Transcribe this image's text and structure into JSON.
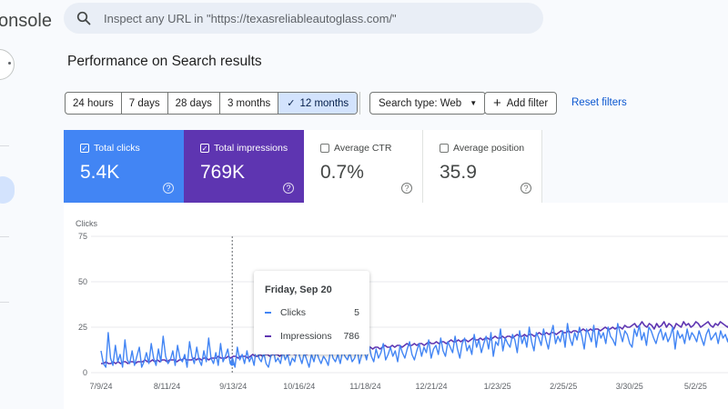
{
  "app": {
    "title": "onsole"
  },
  "search": {
    "placeholder": "Inspect any URL in \"https://texasreliableautoglass.com/\""
  },
  "page": {
    "title": "Performance on Search results"
  },
  "date_ranges": [
    {
      "label": "24 hours",
      "selected": false
    },
    {
      "label": "7 days",
      "selected": false
    },
    {
      "label": "28 days",
      "selected": false
    },
    {
      "label": "3 months",
      "selected": false
    },
    {
      "label": "12 months",
      "selected": true
    }
  ],
  "filters": {
    "search_type": "Search type: Web",
    "add_filter": "Add filter",
    "reset": "Reset filters"
  },
  "metrics": [
    {
      "label": "Total clicks",
      "value": "5.4K",
      "checked": true,
      "color": "#4285f4"
    },
    {
      "label": "Total impressions",
      "value": "769K",
      "checked": true,
      "color": "#5e35b1"
    },
    {
      "label": "Average CTR",
      "value": "0.7%",
      "checked": false
    },
    {
      "label": "Average position",
      "value": "35.9",
      "checked": false
    }
  ],
  "tooltip": {
    "date": "Friday, Sep 20",
    "rows": [
      {
        "name": "Clicks",
        "value": "5",
        "color": "#4285f4"
      },
      {
        "name": "Impressions",
        "value": "786",
        "color": "#5e35b1"
      }
    ]
  },
  "chart_data": {
    "type": "line",
    "ylabel": "Clicks",
    "y_ticks": [
      "75",
      "50",
      "25",
      "0"
    ],
    "ylim": [
      0,
      75
    ],
    "x_ticks": [
      "7/9/24",
      "8/11/24",
      "9/13/24",
      "10/16/24",
      "11/18/24",
      "12/21/24",
      "1/23/25",
      "2/25/25",
      "3/30/25",
      "5/2/25"
    ],
    "grid": true,
    "hover_date": "9/20/24",
    "series": [
      {
        "name": "Clicks",
        "color": "#4285f4",
        "values": [
          12,
          5,
          3,
          22,
          8,
          4,
          15,
          6,
          10,
          3,
          18,
          7,
          5,
          12,
          4,
          9,
          14,
          3,
          6,
          11,
          5,
          16,
          8,
          4,
          13,
          6,
          20,
          9,
          5,
          7,
          12,
          4,
          15,
          8,
          6,
          10,
          3,
          17,
          9,
          5,
          14,
          7,
          4,
          12,
          6,
          19,
          8,
          5,
          11,
          4,
          16,
          6,
          9,
          13,
          5,
          8,
          3,
          14,
          7,
          10,
          5,
          12,
          6,
          9,
          4,
          15,
          8,
          6,
          11,
          5,
          3,
          9,
          13,
          6,
          8,
          5,
          12,
          7,
          10,
          4,
          8,
          6,
          14,
          9,
          5,
          11,
          7,
          3,
          10,
          6,
          12,
          8,
          5,
          9,
          7,
          4,
          13,
          8,
          6,
          10,
          5,
          12,
          9,
          7,
          11,
          6,
          8,
          14,
          5,
          10,
          12,
          7,
          15,
          9,
          6,
          13,
          8,
          11,
          16,
          7,
          10,
          14,
          9,
          12,
          6,
          15,
          11,
          8,
          13,
          17,
          10,
          7,
          12,
          16,
          9,
          14,
          11,
          18,
          8,
          13,
          15,
          10,
          19,
          12,
          9,
          17,
          14,
          11,
          20,
          13,
          8,
          16,
          19,
          12,
          15,
          10,
          21,
          14,
          18,
          11,
          16,
          20,
          13,
          22,
          9,
          17,
          15,
          24,
          12,
          19,
          16,
          14,
          21,
          18,
          11,
          23,
          16,
          20,
          14,
          25,
          17,
          12,
          22,
          19,
          15,
          24,
          18,
          13,
          21,
          26,
          16,
          20,
          17,
          23,
          14,
          27,
          19,
          15,
          22,
          18,
          25,
          20,
          13,
          24,
          21,
          17,
          26,
          14,
          23,
          19,
          22,
          16,
          25,
          20,
          18,
          15,
          27,
          22,
          17,
          23,
          21,
          16,
          14,
          24,
          20,
          26,
          18,
          22,
          15,
          25,
          23,
          19,
          16,
          21,
          24,
          18,
          22,
          17,
          20,
          25,
          13,
          23,
          19,
          21,
          16,
          24,
          18,
          22,
          20,
          17,
          23,
          19,
          15,
          21,
          24,
          18,
          20,
          22,
          16,
          23,
          19,
          21,
          17,
          24,
          20
        ]
      },
      {
        "name": "Impressions",
        "color": "#5e35b1",
        "values": [
          5,
          5,
          6,
          5,
          5,
          6,
          5,
          6,
          5,
          6,
          6,
          5,
          6,
          6,
          5,
          6,
          6,
          6,
          7,
          6,
          6,
          7,
          6,
          7,
          6,
          7,
          7,
          6,
          7,
          7,
          7,
          6,
          7,
          7,
          8,
          7,
          7,
          7,
          8,
          7,
          8,
          7,
          8,
          8,
          7,
          8,
          8,
          8,
          9,
          8,
          8,
          8,
          9,
          8,
          9,
          9,
          8,
          9,
          9,
          9,
          8,
          9,
          10,
          9,
          9,
          10,
          9,
          10,
          10,
          9,
          10,
          10,
          10,
          9,
          10,
          11,
          10,
          10,
          11,
          10,
          11,
          10,
          11,
          11,
          10,
          11,
          11,
          12,
          11,
          11,
          12,
          11,
          12,
          12,
          11,
          12,
          12,
          13,
          12,
          12,
          13,
          12,
          13,
          13,
          12,
          13,
          13,
          14,
          13,
          13,
          14,
          13,
          14,
          14,
          13,
          14,
          15,
          14,
          14,
          15,
          14,
          15,
          15,
          14,
          15,
          16,
          15,
          15,
          16,
          15,
          16,
          16,
          15,
          16,
          17,
          16,
          16,
          17,
          16,
          17,
          17,
          16,
          17,
          18,
          17,
          17,
          18,
          17,
          18,
          18,
          17,
          18,
          19,
          18,
          18,
          19,
          18,
          19,
          19,
          18,
          19,
          20,
          19,
          19,
          20,
          19,
          20,
          20,
          19,
          20,
          21,
          20,
          20,
          21,
          20,
          21,
          21,
          20,
          21,
          22,
          21,
          21,
          22,
          21,
          22,
          22,
          21,
          22,
          23,
          22,
          22,
          23,
          22,
          23,
          23,
          22,
          23,
          24,
          23,
          23,
          24,
          23,
          24,
          24,
          23,
          24,
          25,
          24,
          24,
          25,
          24,
          25,
          25,
          24,
          26,
          25,
          25,
          26,
          27,
          25,
          26,
          28,
          26,
          25,
          27,
          26,
          24,
          27,
          25,
          26,
          28,
          25,
          27,
          26,
          24,
          27,
          26,
          25,
          28,
          26,
          27,
          25,
          26,
          28,
          27,
          25,
          26,
          27,
          28,
          26,
          25,
          27,
          26,
          28,
          27,
          26,
          25,
          27,
          26
        ]
      }
    ]
  }
}
